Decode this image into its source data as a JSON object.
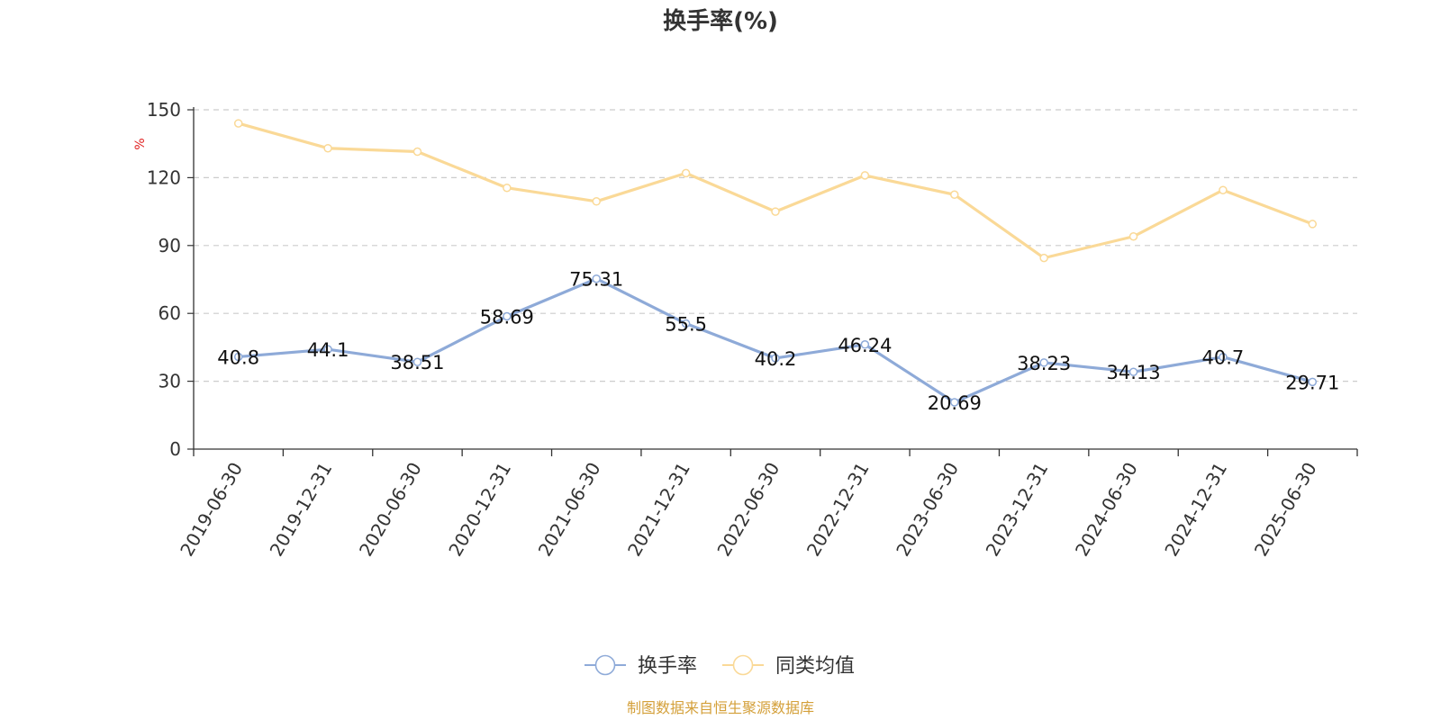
{
  "chart_data": {
    "type": "line",
    "title": "换手率(%)",
    "ylabel": "%",
    "ylim": [
      0,
      150
    ],
    "yticks": [
      0,
      30,
      60,
      90,
      120,
      150
    ],
    "grid": true,
    "legend_position": "bottom-center",
    "categories": [
      "2019-06-30",
      "2019-12-31",
      "2020-06-30",
      "2020-12-31",
      "2021-06-30",
      "2021-12-31",
      "2022-06-30",
      "2022-12-31",
      "2023-06-30",
      "2023-12-31",
      "2024-06-30",
      "2024-12-31",
      "2025-06-30"
    ],
    "series": [
      {
        "name": "换手率",
        "color": "#8eaad8",
        "show_labels": true,
        "values": [
          40.8,
          44.1,
          38.51,
          58.69,
          75.31,
          55.5,
          40.2,
          46.24,
          20.69,
          38.23,
          34.13,
          40.7,
          29.71
        ]
      },
      {
        "name": "同类均值",
        "color": "#fad997",
        "show_labels": false,
        "values": [
          144,
          133,
          131.5,
          115.5,
          109.5,
          122,
          105,
          121,
          112.5,
          84.5,
          94,
          114.5,
          99.5
        ]
      }
    ]
  },
  "source_text": "制图数据来自恒生聚源数据库",
  "colors": {
    "axis": "#333333",
    "grid": "#cccccc",
    "ylabel": "#e02020",
    "source": "#d4a03a"
  }
}
